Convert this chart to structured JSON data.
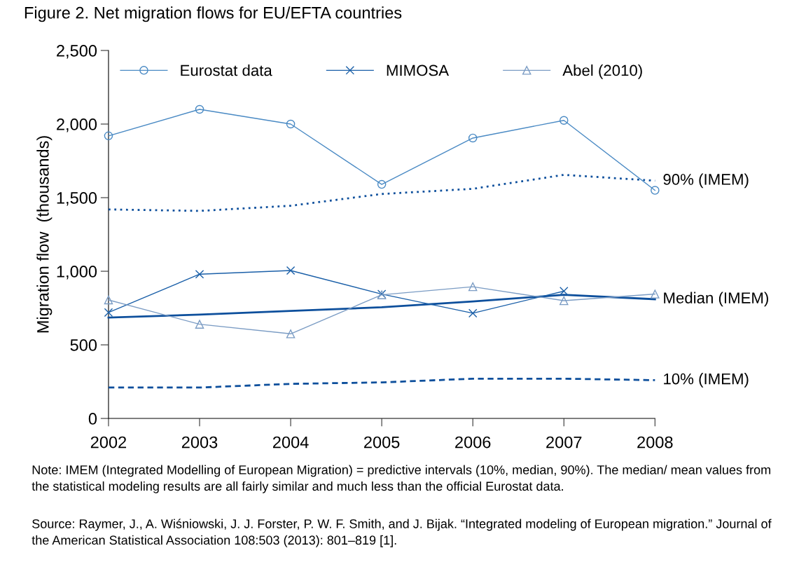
{
  "chart_data": {
    "type": "line",
    "title": "Figure 2. Net migration flows for EU/EFTA countries",
    "ylabel": "Migration flow  (thousands)",
    "x": [
      2002,
      2003,
      2004,
      2005,
      2006,
      2007,
      2008
    ],
    "series": [
      {
        "name": "Eurostat data",
        "color": "#4a8ac4",
        "marker": "circle",
        "line_style": "solid",
        "values": [
          1920,
          2100,
          2000,
          1590,
          1905,
          2025,
          1550
        ]
      },
      {
        "name": "MIMOSA",
        "color": "#1a5fa8",
        "marker": "cross",
        "line_style": "solid",
        "values": [
          720,
          980,
          1005,
          845,
          715,
          865,
          null
        ]
      },
      {
        "name": "Abel (2010)",
        "color": "#7b9cc4",
        "marker": "triangle",
        "line_style": "solid",
        "values": [
          805,
          640,
          575,
          840,
          895,
          800,
          845
        ]
      },
      {
        "name": "90% (IMEM)",
        "color": "#0d4f9c",
        "marker": "none",
        "line_style": "dotted",
        "values": [
          1420,
          1410,
          1445,
          1525,
          1560,
          1655,
          1615
        ]
      },
      {
        "name": "Median (IMEM)",
        "color": "#0d4f9c",
        "marker": "none",
        "line_style": "solid",
        "values": [
          685,
          705,
          730,
          755,
          795,
          840,
          810
        ]
      },
      {
        "name": "10% (IMEM)",
        "color": "#0d4f9c",
        "marker": "none",
        "line_style": "dashed",
        "values": [
          210,
          210,
          235,
          245,
          270,
          270,
          260
        ]
      }
    ],
    "xlim": [
      2002,
      2008
    ],
    "xticks": [
      2002,
      2003,
      2004,
      2005,
      2006,
      2007,
      2008
    ],
    "ylim": [
      0,
      2500
    ],
    "yticks": [
      0,
      {
        "value": 500,
        "label": "500"
      },
      {
        "value": 1000,
        "label": "1,000"
      },
      {
        "value": 1500,
        "label": "1,500"
      },
      {
        "value": 2000,
        "label": "2,000"
      },
      {
        "value": 2500,
        "label": "2,500"
      }
    ],
    "grid": false,
    "legend": "top",
    "annotations": [
      "Note: IMEM (Integrated Modelling of European Migration) = predictive intervals (10%, median, 90%). The median/ mean values from the statistical modeling results are all fairly similar and much less than the official Eurostat data.",
      "Source: Raymer, J., A. Wiśniowski, J. J. Forster, P. W. F. Smith, and J. Bijak. “Integrated modeling of European migration.” Journal of the American Statistical Association 108:503 (2013): 801–819 [1]."
    ]
  }
}
